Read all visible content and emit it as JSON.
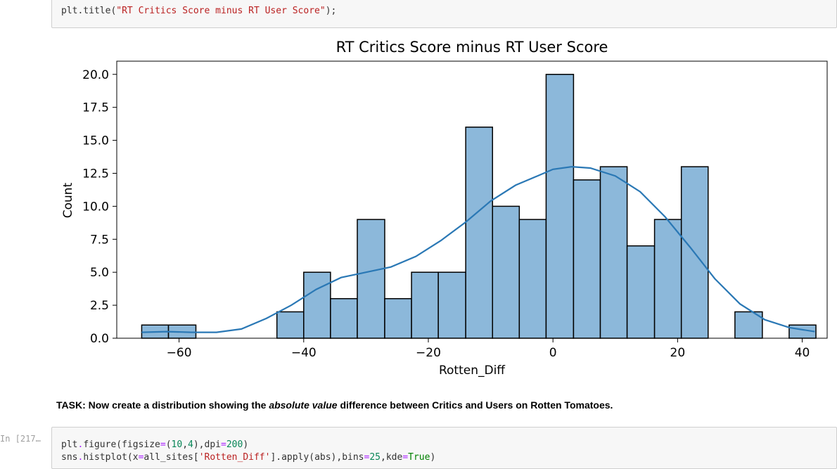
{
  "top_cell": {
    "code_prefix": "plt.title(",
    "code_string": "\"RT Critics Score minus RT User Score\"",
    "code_suffix": ");"
  },
  "task_text": {
    "prefix": "TASK: Now create a distribution showing the ",
    "emphasis": "absolute value",
    "suffix": " difference between Critics and Users on Rotten Tomatoes."
  },
  "bottom_cell": {
    "prompt": "In [217…",
    "line1": {
      "a": "plt",
      "b": ".",
      "c": "figure(figsize",
      "d": "=",
      "e": "(",
      "f": "10",
      "g": ",",
      "h": "4",
      "i": "),dpi",
      "j": "=",
      "k": "200",
      "l": ")"
    },
    "line2": {
      "a": "sns",
      "b": ".",
      "c": "histplot(x",
      "d": "=",
      "e": "all_sites[",
      "f": "'Rotten_Diff'",
      "g": "].apply(abs),bins",
      "h": "=",
      "i": "25",
      "j": ",kde",
      "k": "=",
      "l": "True",
      "m": ")"
    }
  },
  "colors": {
    "bar_fill": "#8cb8da",
    "bar_stroke": "#000000",
    "kde_line": "#2a78b5"
  },
  "chart_data": {
    "type": "bar",
    "title": "RT Critics Score minus RT User Score",
    "xlabel": "Rotten_Diff",
    "ylabel": "Count",
    "xlim": [
      -70,
      44
    ],
    "ylim": [
      0,
      21
    ],
    "xticks": [
      -60,
      -40,
      -20,
      0,
      20,
      40
    ],
    "xtick_labels": [
      "−60",
      "−40",
      "−20",
      "0",
      "20",
      "40"
    ],
    "yticks": [
      0,
      2.5,
      5,
      7.5,
      10,
      12.5,
      15,
      17.5,
      20
    ],
    "ytick_labels": [
      "0.0",
      "2.5",
      "5.0",
      "7.5",
      "10.0",
      "12.5",
      "15.0",
      "17.5",
      "20.0"
    ],
    "bins": [
      {
        "x0": -66,
        "x1": -61.7,
        "count": 1
      },
      {
        "x0": -61.7,
        "x1": -57.3,
        "count": 1
      },
      {
        "x0": -44.3,
        "x1": -40,
        "count": 2
      },
      {
        "x0": -40,
        "x1": -35.7,
        "count": 5
      },
      {
        "x0": -35.7,
        "x1": -31.4,
        "count": 3
      },
      {
        "x0": -31.4,
        "x1": -27,
        "count": 9
      },
      {
        "x0": -27,
        "x1": -22.7,
        "count": 3
      },
      {
        "x0": -22.7,
        "x1": -18.4,
        "count": 5
      },
      {
        "x0": -18.4,
        "x1": -14,
        "count": 5
      },
      {
        "x0": -14,
        "x1": -9.7,
        "count": 16
      },
      {
        "x0": -9.7,
        "x1": -5.4,
        "count": 10
      },
      {
        "x0": -5.4,
        "x1": -1.1,
        "count": 9
      },
      {
        "x0": -1.1,
        "x1": 3.3,
        "count": 20
      },
      {
        "x0": 3.3,
        "x1": 7.6,
        "count": 12
      },
      {
        "x0": 7.6,
        "x1": 11.9,
        "count": 13
      },
      {
        "x0": 11.9,
        "x1": 16.3,
        "count": 7
      },
      {
        "x0": 16.3,
        "x1": 20.6,
        "count": 9
      },
      {
        "x0": 20.6,
        "x1": 24.9,
        "count": 13
      },
      {
        "x0": 29.2,
        "x1": 33.6,
        "count": 2
      },
      {
        "x0": 37.9,
        "x1": 42.2,
        "count": 1
      }
    ],
    "kde": {
      "x": [
        -66,
        -62,
        -58,
        -54,
        -50,
        -46,
        -42,
        -38,
        -34,
        -30,
        -26,
        -22,
        -18,
        -14,
        -10,
        -6,
        -2,
        0,
        3,
        6,
        10,
        14,
        18,
        22,
        26,
        30,
        34,
        38,
        42
      ],
      "y": [
        0.45,
        0.5,
        0.45,
        0.45,
        0.7,
        1.5,
        2.5,
        3.7,
        4.6,
        5.0,
        5.4,
        6.2,
        7.4,
        8.8,
        10.4,
        11.6,
        12.4,
        12.8,
        13.0,
        12.9,
        12.3,
        11.1,
        9.2,
        6.9,
        4.5,
        2.6,
        1.4,
        0.8,
        0.5
      ]
    }
  }
}
